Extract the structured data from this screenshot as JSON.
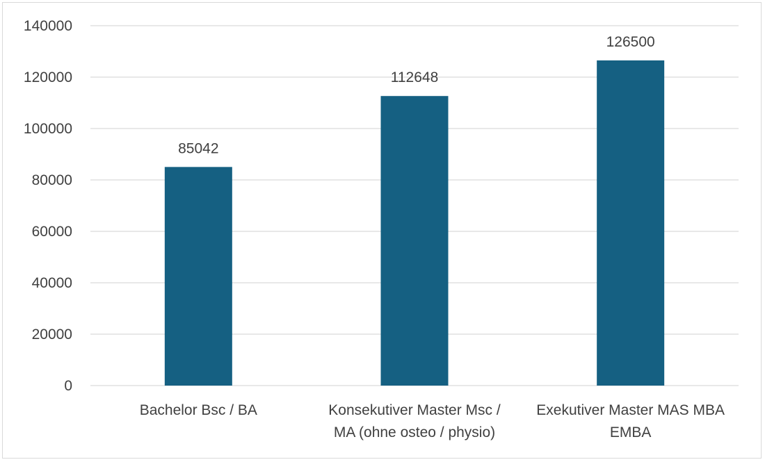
{
  "colors": {
    "bar": "#156082",
    "grid": "#d9d9d9",
    "text": "#404040"
  },
  "chart_data": {
    "type": "bar",
    "title": "",
    "xlabel": "",
    "ylabel": "",
    "categories": [
      [
        "Bachelor Bsc / BA"
      ],
      [
        "Konsekutiver Master Msc /",
        "MA (ohne osteo / physio)"
      ],
      [
        "Exekutiver Master MAS MBA",
        "EMBA"
      ]
    ],
    "values": [
      85042,
      112648,
      126500
    ],
    "data_labels": [
      "85042",
      "112648",
      "126500"
    ],
    "ylim": [
      0,
      140000
    ],
    "yticks": [
      "0",
      "20000",
      "40000",
      "60000",
      "80000",
      "100000",
      "120000",
      "140000"
    ],
    "grid": true,
    "legend": "none"
  }
}
